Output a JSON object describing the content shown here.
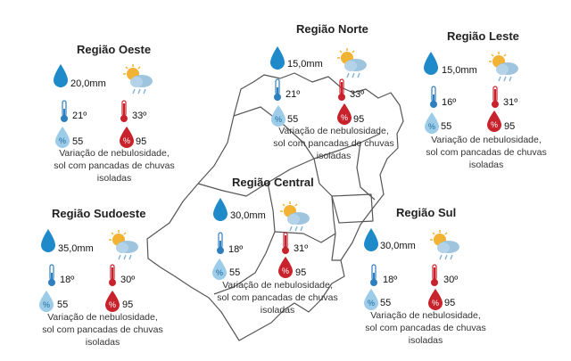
{
  "regions": [
    {
      "name": "Região Oeste",
      "precip": "20,0mm",
      "tmin": "21º",
      "tmax": "33º",
      "hmin": "55",
      "hmax": "95",
      "desc1": "Variação de nebulosidade,",
      "desc2": "sol com pancadas de chuvas",
      "desc3": "isoladas"
    },
    {
      "name": "Região Norte",
      "precip": "15,0mm",
      "tmin": "21º",
      "tmax": "33º",
      "hmin": "55",
      "hmax": "95",
      "desc1": "Variação de nebulosidade,",
      "desc2": "sol com pancadas de chuvas",
      "desc3": "isoladas"
    },
    {
      "name": "Região Leste",
      "precip": "15,0mm",
      "tmin": "16º",
      "tmax": "31º",
      "hmin": "55",
      "hmax": "95",
      "desc1": "Variação de nebulosidade,",
      "desc2": "sol com pancadas de chuvas",
      "desc3": "isoladas"
    },
    {
      "name": "Região Sudoeste",
      "precip": "35,0mm",
      "tmin": "18º",
      "tmax": "30º",
      "hmin": "55",
      "hmax": "95",
      "desc1": "Variação de nebulosidade,",
      "desc2": "sol com pancadas de chuvas",
      "desc3": "isoladas"
    },
    {
      "name": "Região Central",
      "precip": "30,0mm",
      "tmin": "18º",
      "tmax": "31º",
      "hmin": "55",
      "hmax": "95",
      "desc1": "Variação de nebulosidade,",
      "desc2": "sol com pancadas de chuvas",
      "desc3": "isoladas"
    },
    {
      "name": "Região Sul",
      "precip": "30,0mm",
      "tmin": "18º",
      "tmax": "30º",
      "hmin": "55",
      "hmax": "95",
      "desc1": "Variação de nebulosidade,",
      "desc2": "sol com pancadas de chuvas",
      "desc3": "isoladas"
    }
  ],
  "colors": {
    "rain_drop": "#1f8ac9",
    "thermo_min": "#2e7fc0",
    "thermo_max": "#c8232c",
    "humid_min": "#9ccce8",
    "humid_max": "#c8232c",
    "sun": "#f2b233",
    "cloud": "#9fc4de"
  },
  "icons": {
    "precip": "raindrop-icon",
    "weather": "sun-cloud-rain-icon",
    "tmin": "thermometer-min-icon",
    "tmax": "thermometer-max-icon",
    "hmin": "humidity-min-icon",
    "hmax": "humidity-max-icon"
  }
}
